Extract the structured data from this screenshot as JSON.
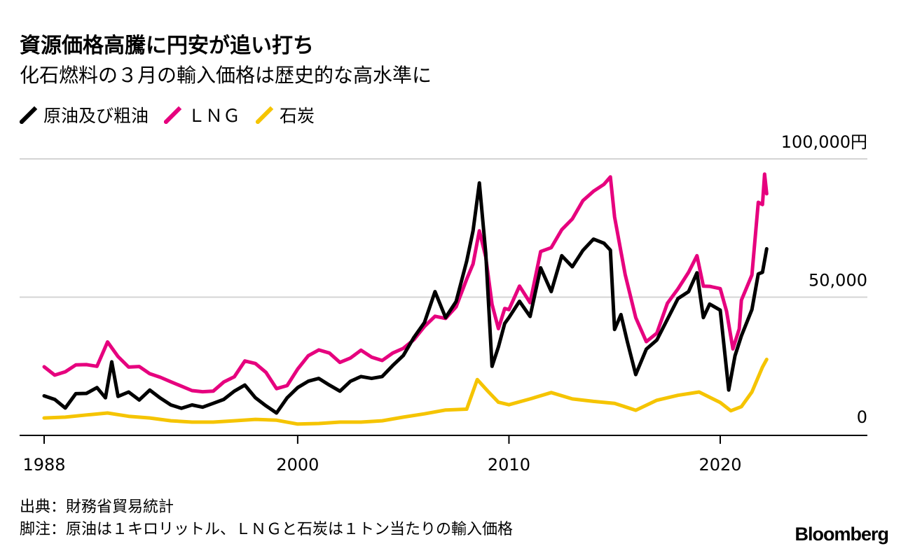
{
  "title": "資源価格高騰に円安が追い打ち",
  "subtitle": "化石燃料の３月の輸入価格は歴史的な高水準に",
  "legend": [
    {
      "label": "原油及び粗油",
      "color": "#000000"
    },
    {
      "label": "ＬＮＧ",
      "color": "#e6007e"
    },
    {
      "label": "石炭",
      "color": "#f5c400"
    }
  ],
  "source": "出典：財務省貿易統計",
  "note": "脚注：原油は１キロリットル、ＬＮＧと石炭は１トン当たりの輸入価格",
  "brand": "Bloomberg",
  "chart_data": {
    "type": "line",
    "title": "資源価格高騰に円安が追い打ち",
    "ylabel": "円",
    "ylim": [
      0,
      100000
    ],
    "xlim": [
      1988,
      2026
    ],
    "y_ticks": [
      {
        "value": 0,
        "label": "0"
      },
      {
        "value": 50000,
        "label": "50,000"
      },
      {
        "value": 100000,
        "label": "100,000円"
      }
    ],
    "x_ticks": [
      {
        "value": 1988,
        "label": "1988"
      },
      {
        "value": 2000,
        "label": "2000"
      },
      {
        "value": 2010,
        "label": "2010"
      },
      {
        "value": 2020,
        "label": "2020"
      }
    ],
    "series": [
      {
        "name": "原油及び粗油",
        "color": "#000000",
        "points": [
          [
            1988,
            14300
          ],
          [
            1988.5,
            13000
          ],
          [
            1989,
            9900
          ],
          [
            1989.5,
            15100
          ],
          [
            1990,
            15200
          ],
          [
            1990.5,
            17300
          ],
          [
            1990.9,
            13600
          ],
          [
            1991.2,
            26600
          ],
          [
            1991.5,
            14100
          ],
          [
            1992,
            15700
          ],
          [
            1992.5,
            12800
          ],
          [
            1993,
            16400
          ],
          [
            1993.5,
            13500
          ],
          [
            1994,
            11000
          ],
          [
            1994.5,
            9800
          ],
          [
            1995,
            11000
          ],
          [
            1995.5,
            10200
          ],
          [
            1996,
            11600
          ],
          [
            1996.5,
            13000
          ],
          [
            1997,
            16000
          ],
          [
            1997.5,
            18200
          ],
          [
            1998,
            13600
          ],
          [
            1998.5,
            10700
          ],
          [
            1999,
            8100
          ],
          [
            1999.5,
            13600
          ],
          [
            2000,
            17300
          ],
          [
            2000.5,
            19600
          ],
          [
            2001,
            20600
          ],
          [
            2001.5,
            18200
          ],
          [
            2002,
            16000
          ],
          [
            2002.5,
            19600
          ],
          [
            2003,
            21300
          ],
          [
            2003.5,
            20600
          ],
          [
            2004,
            21300
          ],
          [
            2004.5,
            25300
          ],
          [
            2005,
            28900
          ],
          [
            2005.5,
            35400
          ],
          [
            2006,
            40800
          ],
          [
            2006.5,
            52000
          ],
          [
            2007,
            42600
          ],
          [
            2007.5,
            48400
          ],
          [
            2008,
            63000
          ],
          [
            2008.3,
            74000
          ],
          [
            2008.6,
            91300
          ],
          [
            2008.9,
            66000
          ],
          [
            2009.2,
            25000
          ],
          [
            2009.5,
            32000
          ],
          [
            2009.8,
            40500
          ],
          [
            2010,
            42600
          ],
          [
            2010.5,
            48500
          ],
          [
            2011,
            43000
          ],
          [
            2011.5,
            60600
          ],
          [
            2012,
            52000
          ],
          [
            2012.5,
            65000
          ],
          [
            2013,
            61000
          ],
          [
            2013.5,
            66900
          ],
          [
            2014,
            71000
          ],
          [
            2014.5,
            69500
          ],
          [
            2014.8,
            67000
          ],
          [
            2015,
            38300
          ],
          [
            2015.3,
            43700
          ],
          [
            2015.6,
            34000
          ],
          [
            2016,
            22000
          ],
          [
            2016.5,
            31200
          ],
          [
            2017,
            34500
          ],
          [
            2017.5,
            42000
          ],
          [
            2018,
            49500
          ],
          [
            2018.5,
            52000
          ],
          [
            2018.9,
            58800
          ],
          [
            2019.2,
            42600
          ],
          [
            2019.5,
            47500
          ],
          [
            2020,
            45300
          ],
          [
            2020.4,
            16400
          ],
          [
            2020.7,
            28800
          ],
          [
            2021,
            36000
          ],
          [
            2021.5,
            45500
          ],
          [
            2021.8,
            58400
          ],
          [
            2022,
            59000
          ],
          [
            2022.2,
            67500
          ]
        ]
      },
      {
        "name": "ＬＮＧ",
        "color": "#e6007e",
        "points": [
          [
            1988,
            24800
          ],
          [
            1988.5,
            21800
          ],
          [
            1989,
            23000
          ],
          [
            1989.5,
            25500
          ],
          [
            1990,
            25600
          ],
          [
            1990.5,
            25000
          ],
          [
            1991,
            33800
          ],
          [
            1991.5,
            28500
          ],
          [
            1992,
            24700
          ],
          [
            1992.5,
            24900
          ],
          [
            1993,
            22300
          ],
          [
            1993.5,
            21000
          ],
          [
            1994,
            19400
          ],
          [
            1994.5,
            17800
          ],
          [
            1995,
            16200
          ],
          [
            1995.5,
            15800
          ],
          [
            1996,
            16000
          ],
          [
            1996.5,
            19300
          ],
          [
            1997,
            21200
          ],
          [
            1997.5,
            26900
          ],
          [
            1998,
            26000
          ],
          [
            1998.5,
            22800
          ],
          [
            1999,
            16900
          ],
          [
            1999.5,
            18000
          ],
          [
            2000,
            24000
          ],
          [
            2000.5,
            28800
          ],
          [
            2001,
            30900
          ],
          [
            2001.5,
            29800
          ],
          [
            2002,
            26400
          ],
          [
            2002.5,
            28000
          ],
          [
            2003,
            30800
          ],
          [
            2003.5,
            28300
          ],
          [
            2004,
            27100
          ],
          [
            2004.5,
            29800
          ],
          [
            2005,
            31500
          ],
          [
            2005.5,
            34600
          ],
          [
            2006,
            39400
          ],
          [
            2006.5,
            43100
          ],
          [
            2007,
            42300
          ],
          [
            2007.5,
            46500
          ],
          [
            2008,
            56500
          ],
          [
            2008.3,
            62000
          ],
          [
            2008.6,
            74000
          ],
          [
            2008.9,
            64500
          ],
          [
            2009.2,
            47400
          ],
          [
            2009.5,
            38600
          ],
          [
            2009.8,
            45900
          ],
          [
            2010,
            45500
          ],
          [
            2010.5,
            54000
          ],
          [
            2011,
            48000
          ],
          [
            2011.5,
            66500
          ],
          [
            2012,
            67900
          ],
          [
            2012.5,
            74400
          ],
          [
            2013,
            78300
          ],
          [
            2013.5,
            84900
          ],
          [
            2014,
            88300
          ],
          [
            2014.5,
            90800
          ],
          [
            2014.8,
            93500
          ],
          [
            2015,
            79000
          ],
          [
            2015.5,
            58200
          ],
          [
            2016,
            42600
          ],
          [
            2016.5,
            33900
          ],
          [
            2017,
            37000
          ],
          [
            2017.5,
            47800
          ],
          [
            2018,
            53000
          ],
          [
            2018.5,
            59000
          ],
          [
            2018.9,
            65000
          ],
          [
            2019.2,
            54000
          ],
          [
            2019.5,
            53900
          ],
          [
            2020,
            53100
          ],
          [
            2020.3,
            44900
          ],
          [
            2020.6,
            31300
          ],
          [
            2020.9,
            38500
          ],
          [
            2021,
            48900
          ],
          [
            2021.5,
            58000
          ],
          [
            2021.8,
            84300
          ],
          [
            2022,
            83500
          ],
          [
            2022.1,
            94500
          ],
          [
            2022.2,
            87400
          ]
        ]
      },
      {
        "name": "石炭",
        "color": "#f5c400",
        "points": [
          [
            1988,
            6300
          ],
          [
            1989,
            6600
          ],
          [
            1990,
            7400
          ],
          [
            1991,
            8100
          ],
          [
            1992,
            6900
          ],
          [
            1993,
            6300
          ],
          [
            1994,
            5300
          ],
          [
            1995,
            4800
          ],
          [
            1996,
            4800
          ],
          [
            1997,
            5300
          ],
          [
            1998,
            5800
          ],
          [
            1999,
            5500
          ],
          [
            2000,
            4100
          ],
          [
            2001,
            4300
          ],
          [
            2002,
            4800
          ],
          [
            2003,
            4800
          ],
          [
            2004,
            5300
          ],
          [
            2005,
            6600
          ],
          [
            2006,
            7800
          ],
          [
            2007,
            9200
          ],
          [
            2008,
            9500
          ],
          [
            2008.5,
            20200
          ],
          [
            2009,
            16000
          ],
          [
            2009.5,
            12000
          ],
          [
            2010,
            11100
          ],
          [
            2011,
            13200
          ],
          [
            2012,
            15500
          ],
          [
            2013,
            13200
          ],
          [
            2014,
            12300
          ],
          [
            2015,
            11600
          ],
          [
            2016,
            9100
          ],
          [
            2017,
            12700
          ],
          [
            2018,
            14500
          ],
          [
            2019,
            15700
          ],
          [
            2020,
            11900
          ],
          [
            2020.5,
            8900
          ],
          [
            2021,
            10400
          ],
          [
            2021.5,
            15700
          ],
          [
            2022,
            24700
          ],
          [
            2022.2,
            27500
          ]
        ]
      }
    ]
  }
}
